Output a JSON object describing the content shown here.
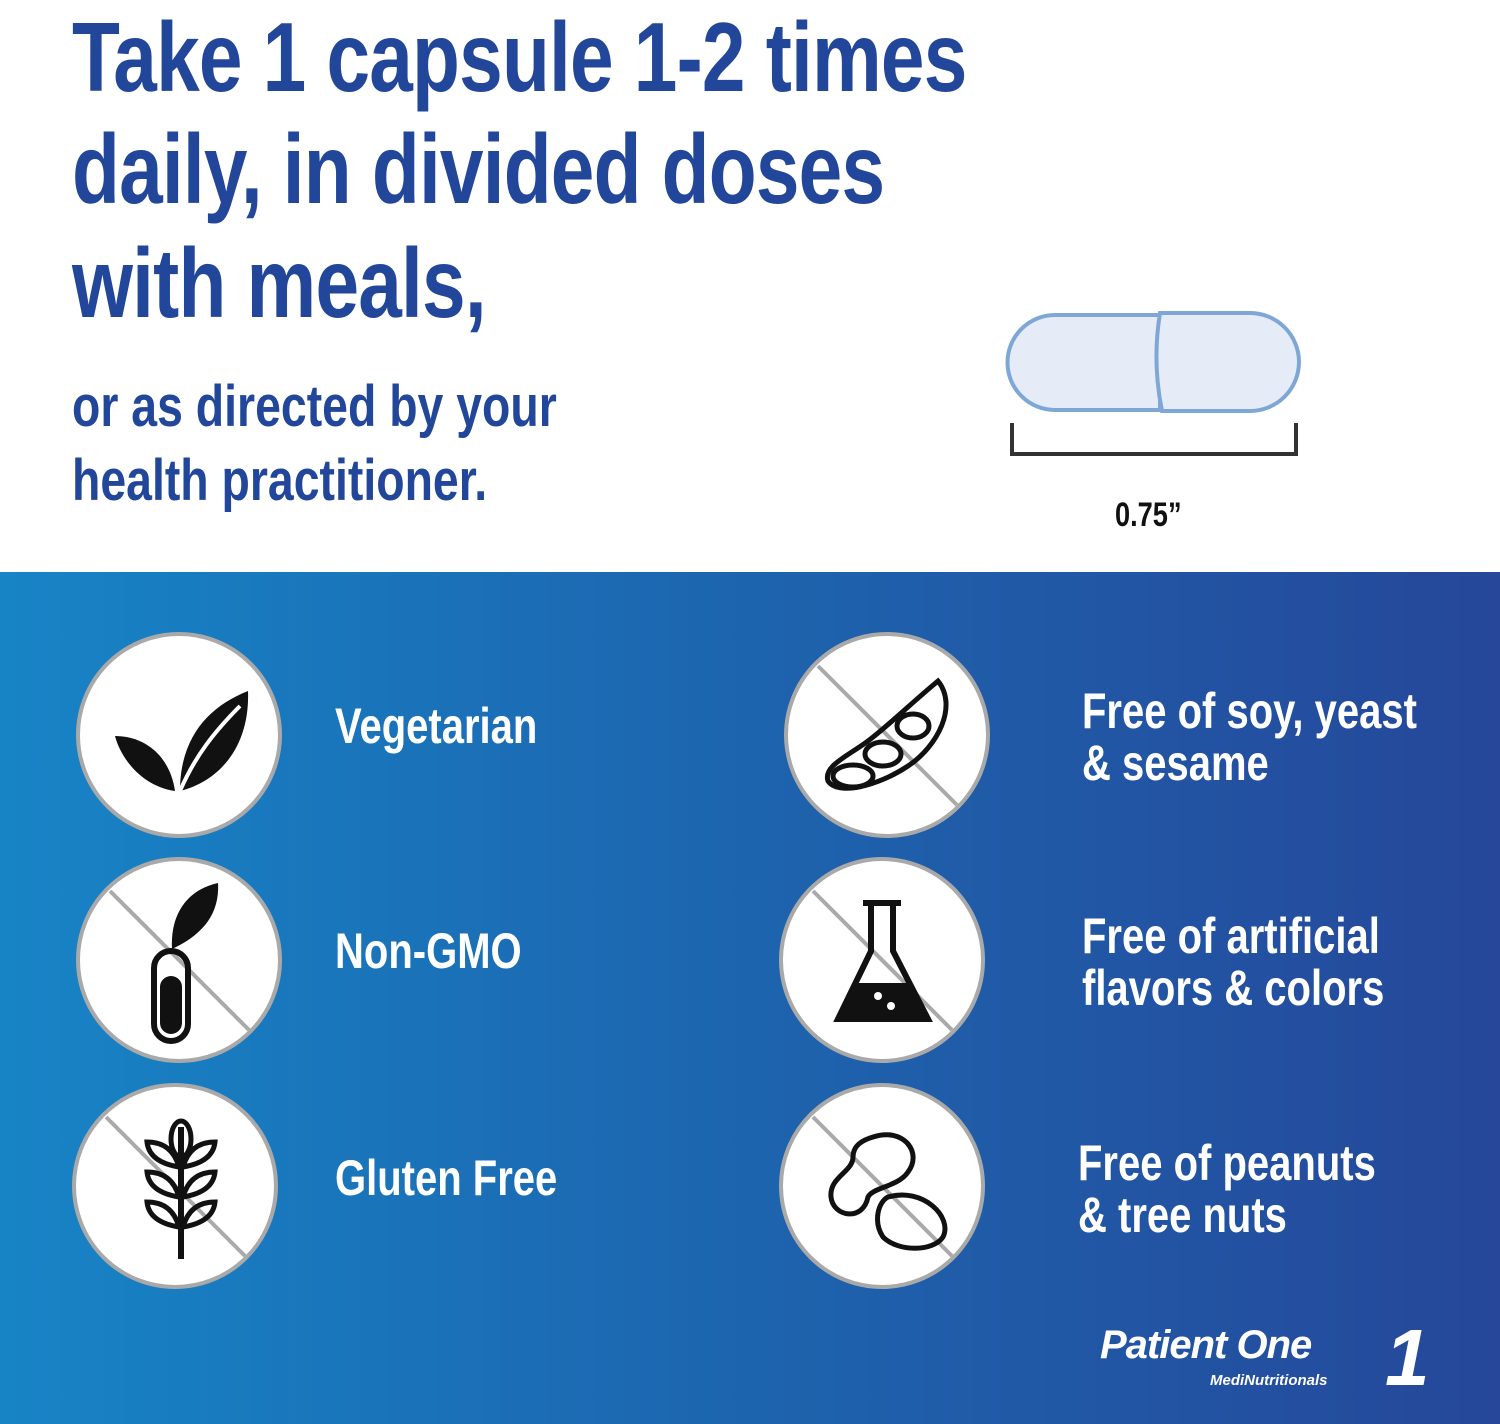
{
  "heading": {
    "line1": "Take 1 capsule 1-2 times",
    "line2": "daily, in divided doses",
    "line3": "with meals,",
    "sub1": "or as directed by your",
    "sub2": "health practitioner."
  },
  "capsule": {
    "size_label": "0.75”",
    "fill_color": "#e6ecf7",
    "stroke_color": "#7ea7d6"
  },
  "features": [
    {
      "icon": "leaf-icon",
      "lines": [
        "Vegetarian"
      ]
    },
    {
      "icon": "no-gmo-test-tube-icon",
      "lines": [
        "Non-GMO"
      ]
    },
    {
      "icon": "no-wheat-icon",
      "lines": [
        "Gluten Free"
      ]
    },
    {
      "icon": "no-soybean-icon",
      "lines": [
        "Free of soy, yeast",
        "& sesame"
      ]
    },
    {
      "icon": "no-flask-icon",
      "lines": [
        "Free of artificial",
        "flavors & colors"
      ]
    },
    {
      "icon": "no-peanut-icon",
      "lines": [
        "Free of peanuts",
        "& tree nuts"
      ]
    }
  ],
  "brand": {
    "name": "Patient One",
    "sub": "MediNutritionals",
    "mark": "1"
  },
  "colors": {
    "heading": "#22479a",
    "band_left": "#1784c6",
    "band_right": "#26479a"
  }
}
